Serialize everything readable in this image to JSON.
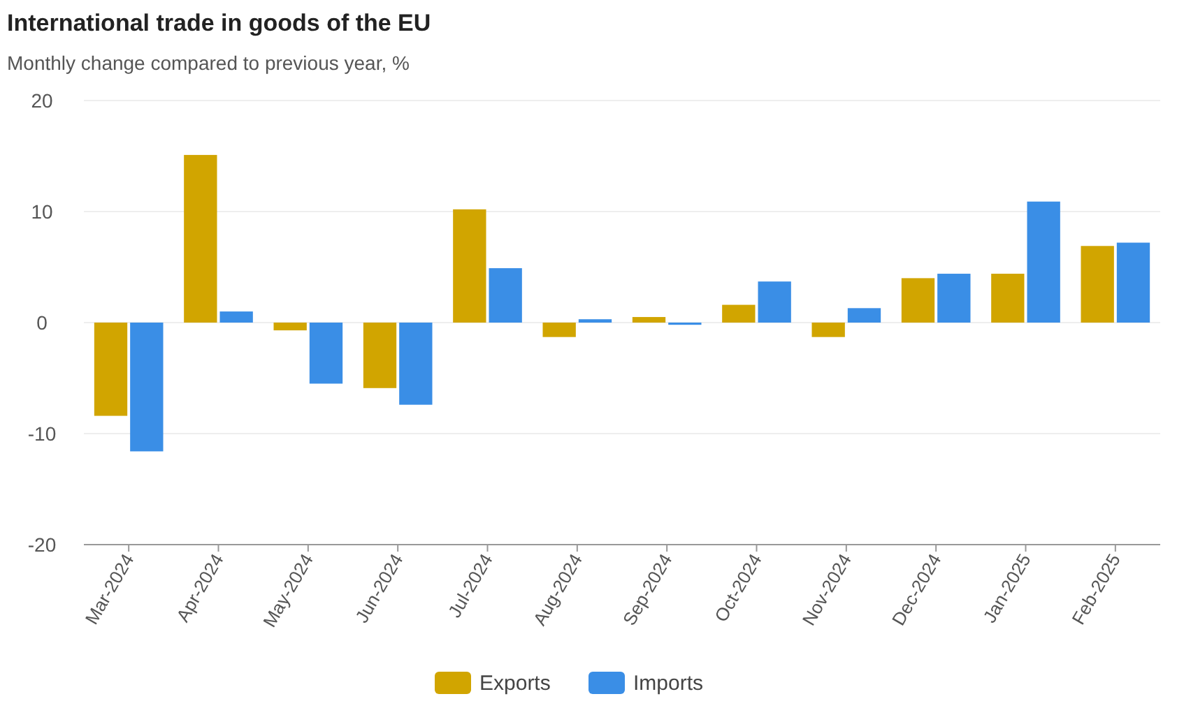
{
  "chart_data": {
    "type": "bar",
    "title": "International trade in goods of the EU",
    "subtitle": "Monthly change compared to previous year, %",
    "categories": [
      "Mar-2024",
      "Apr-2024",
      "May-2024",
      "Jun-2024",
      "Jul-2024",
      "Aug-2024",
      "Sep-2024",
      "Oct-2024",
      "Nov-2024",
      "Dec-2024",
      "Jan-2025",
      "Feb-2025"
    ],
    "series": [
      {
        "name": "Exports",
        "color": "#d1a500",
        "values": [
          -8.4,
          15.1,
          -0.7,
          -5.9,
          10.2,
          -1.3,
          0.5,
          1.6,
          -1.3,
          4.0,
          4.4,
          6.9
        ]
      },
      {
        "name": "Imports",
        "color": "#3a8ee6",
        "values": [
          -11.6,
          1.0,
          -5.5,
          -7.4,
          4.9,
          0.3,
          -0.2,
          3.7,
          1.3,
          4.4,
          10.9,
          7.2
        ]
      }
    ],
    "ylim": [
      -20,
      20
    ],
    "yticks": [
      -20,
      -10,
      0,
      10,
      20
    ],
    "grid": "y",
    "legend": "bottom"
  }
}
